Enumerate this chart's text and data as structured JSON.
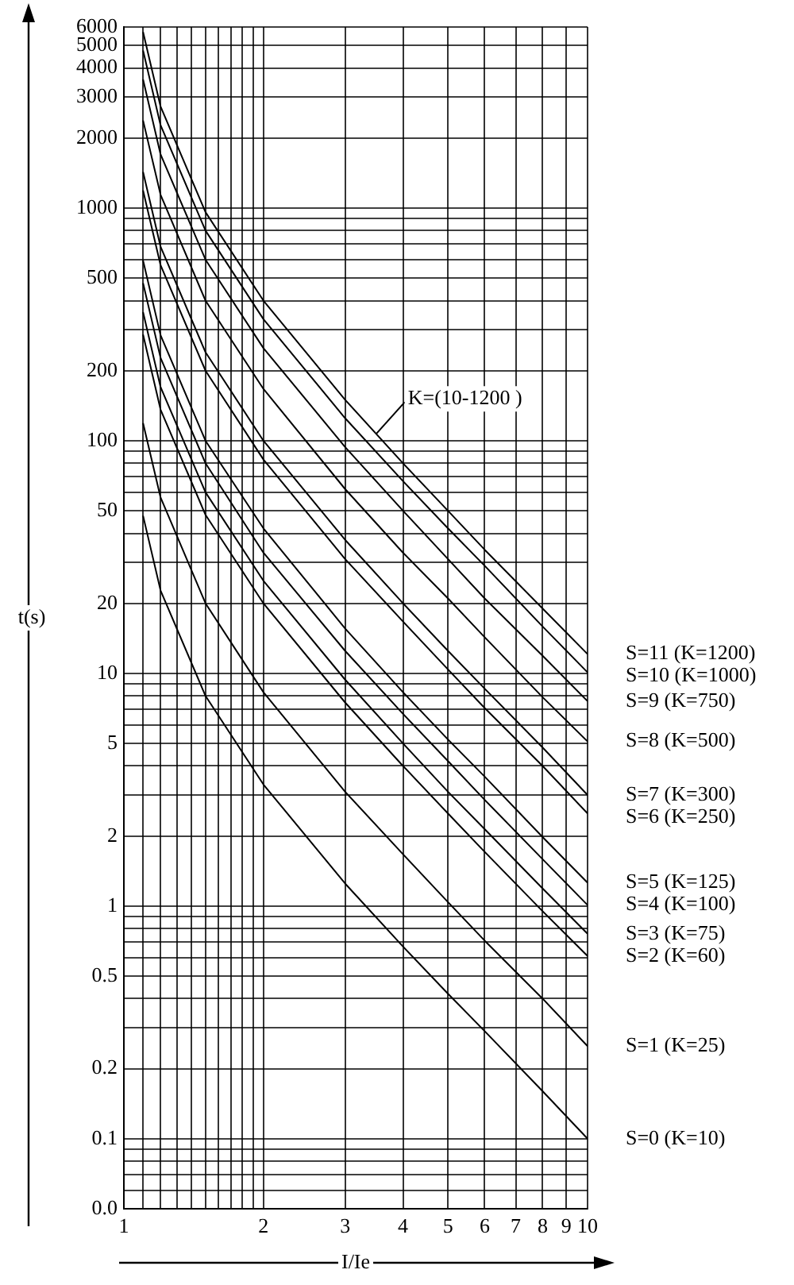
{
  "chart_data": {
    "type": "line",
    "xlabel": "I/Ie",
    "ylabel": "t(s)",
    "log": "xy",
    "grid": true,
    "legend": false,
    "marker": "none",
    "line_style": "solid",
    "xlim": [
      1,
      10
    ],
    "xticks": [
      1,
      {
        "value": 1.1,
        "label": null
      },
      {
        "value": 1.2,
        "label": null
      },
      {
        "value": 1.3,
        "label": null
      },
      {
        "value": 1.4,
        "label": null
      },
      {
        "value": 1.5,
        "label": null
      },
      {
        "value": 1.6,
        "label": null
      },
      {
        "value": 1.7,
        "label": null
      },
      {
        "value": 1.8,
        "label": null
      },
      {
        "value": 1.9,
        "label": null
      },
      2,
      3,
      4,
      5,
      6,
      7,
      8,
      9,
      10
    ],
    "ylim": [
      0.05,
      6000
    ],
    "yticks": [
      {
        "value": 0.05,
        "label": "0.0"
      },
      {
        "value": 0.06,
        "label": null
      },
      {
        "value": 0.07,
        "label": null
      },
      {
        "value": 0.08,
        "label": null
      },
      {
        "value": 0.09,
        "label": null
      },
      0.1,
      0.2,
      {
        "value": 0.3,
        "label": null
      },
      {
        "value": 0.4,
        "label": null
      },
      0.5,
      {
        "value": 0.6,
        "label": null
      },
      {
        "value": 0.7,
        "label": null
      },
      {
        "value": 0.8,
        "label": null
      },
      {
        "value": 0.9,
        "label": null
      },
      1,
      2,
      {
        "value": 3,
        "label": null
      },
      {
        "value": 4,
        "label": null
      },
      5,
      {
        "value": 6,
        "label": null
      },
      {
        "value": 7,
        "label": null
      },
      {
        "value": 8,
        "label": null
      },
      {
        "value": 9,
        "label": null
      },
      10,
      20,
      {
        "value": 30,
        "label": null
      },
      {
        "value": 40,
        "label": null
      },
      50,
      {
        "value": 60,
        "label": null
      },
      {
        "value": 70,
        "label": null
      },
      {
        "value": 80,
        "label": null
      },
      {
        "value": 90,
        "label": null
      },
      100,
      200,
      {
        "value": 300,
        "label": null
      },
      {
        "value": 400,
        "label": null
      },
      500,
      {
        "value": 600,
        "label": null
      },
      {
        "value": 700,
        "label": null
      },
      {
        "value": 800,
        "label": null
      },
      {
        "value": 900,
        "label": null
      },
      1000,
      2000,
      3000,
      4000,
      5000,
      6000
    ],
    "x": [
      1.1,
      1.2,
      1.5,
      2,
      3,
      4,
      5,
      6,
      8,
      10
    ],
    "annotations": [
      {
        "text": "K=(10-1200 )",
        "x": 3.5,
        "y": 107
      }
    ],
    "series": [
      {
        "name": "S=11 (K=1200)",
        "color": "#000000",
        "values": [
          5710,
          2730,
          960,
          400,
          150,
          80,
          50,
          34,
          19,
          12.1
        ]
      },
      {
        "name": "S=10 (K=1000)",
        "color": "#000000",
        "values": [
          4760,
          2270,
          800,
          333,
          125,
          67,
          42,
          29,
          15.9,
          10.1
        ]
      },
      {
        "name": "S=9 (K=750)",
        "color": "#000000",
        "values": [
          3570,
          1700,
          600,
          250,
          94,
          50,
          31,
          21,
          11.9,
          7.6
        ]
      },
      {
        "name": "S=8 (K=500)",
        "color": "#000000",
        "values": [
          2380,
          1140,
          400,
          167,
          62,
          33,
          21,
          14.3,
          7.9,
          5.1
        ]
      },
      {
        "name": "S=7 (K=300)",
        "color": "#000000",
        "values": [
          1430,
          682,
          240,
          100,
          37.5,
          20,
          12.5,
          8.6,
          4.8,
          3.0
        ]
      },
      {
        "name": "S=6 (K=250)",
        "color": "#000000",
        "values": [
          1190,
          568,
          200,
          83,
          31,
          16.7,
          10.4,
          7.1,
          4.0,
          2.5
        ]
      },
      {
        "name": "S=5 (K=125)",
        "color": "#000000",
        "values": [
          595,
          284,
          100,
          42,
          15.6,
          8.3,
          5.2,
          3.6,
          1.98,
          1.26
        ]
      },
      {
        "name": "S=4 (K=100)",
        "color": "#000000",
        "values": [
          476,
          227,
          80,
          33,
          12.5,
          6.7,
          4.2,
          2.86,
          1.59,
          1.01
        ]
      },
      {
        "name": "S=3 (K=75)",
        "color": "#000000",
        "values": [
          357,
          170,
          60,
          25,
          9.4,
          5,
          3.1,
          2.14,
          1.19,
          0.76
        ]
      },
      {
        "name": "S=2 (K=60)",
        "color": "#000000",
        "values": [
          286,
          136,
          48,
          20,
          7.5,
          4,
          2.5,
          1.71,
          0.95,
          0.61
        ]
      },
      {
        "name": "S=1 (K=25)",
        "color": "#000000",
        "values": [
          119,
          57,
          20,
          8.3,
          3.1,
          1.67,
          1.04,
          0.71,
          0.4,
          0.25
        ]
      },
      {
        "name": "S=0 (K=10)",
        "color": "#000000",
        "values": [
          47.6,
          22.7,
          8,
          3.33,
          1.25,
          0.67,
          0.42,
          0.29,
          0.16,
          0.1
        ]
      }
    ]
  }
}
